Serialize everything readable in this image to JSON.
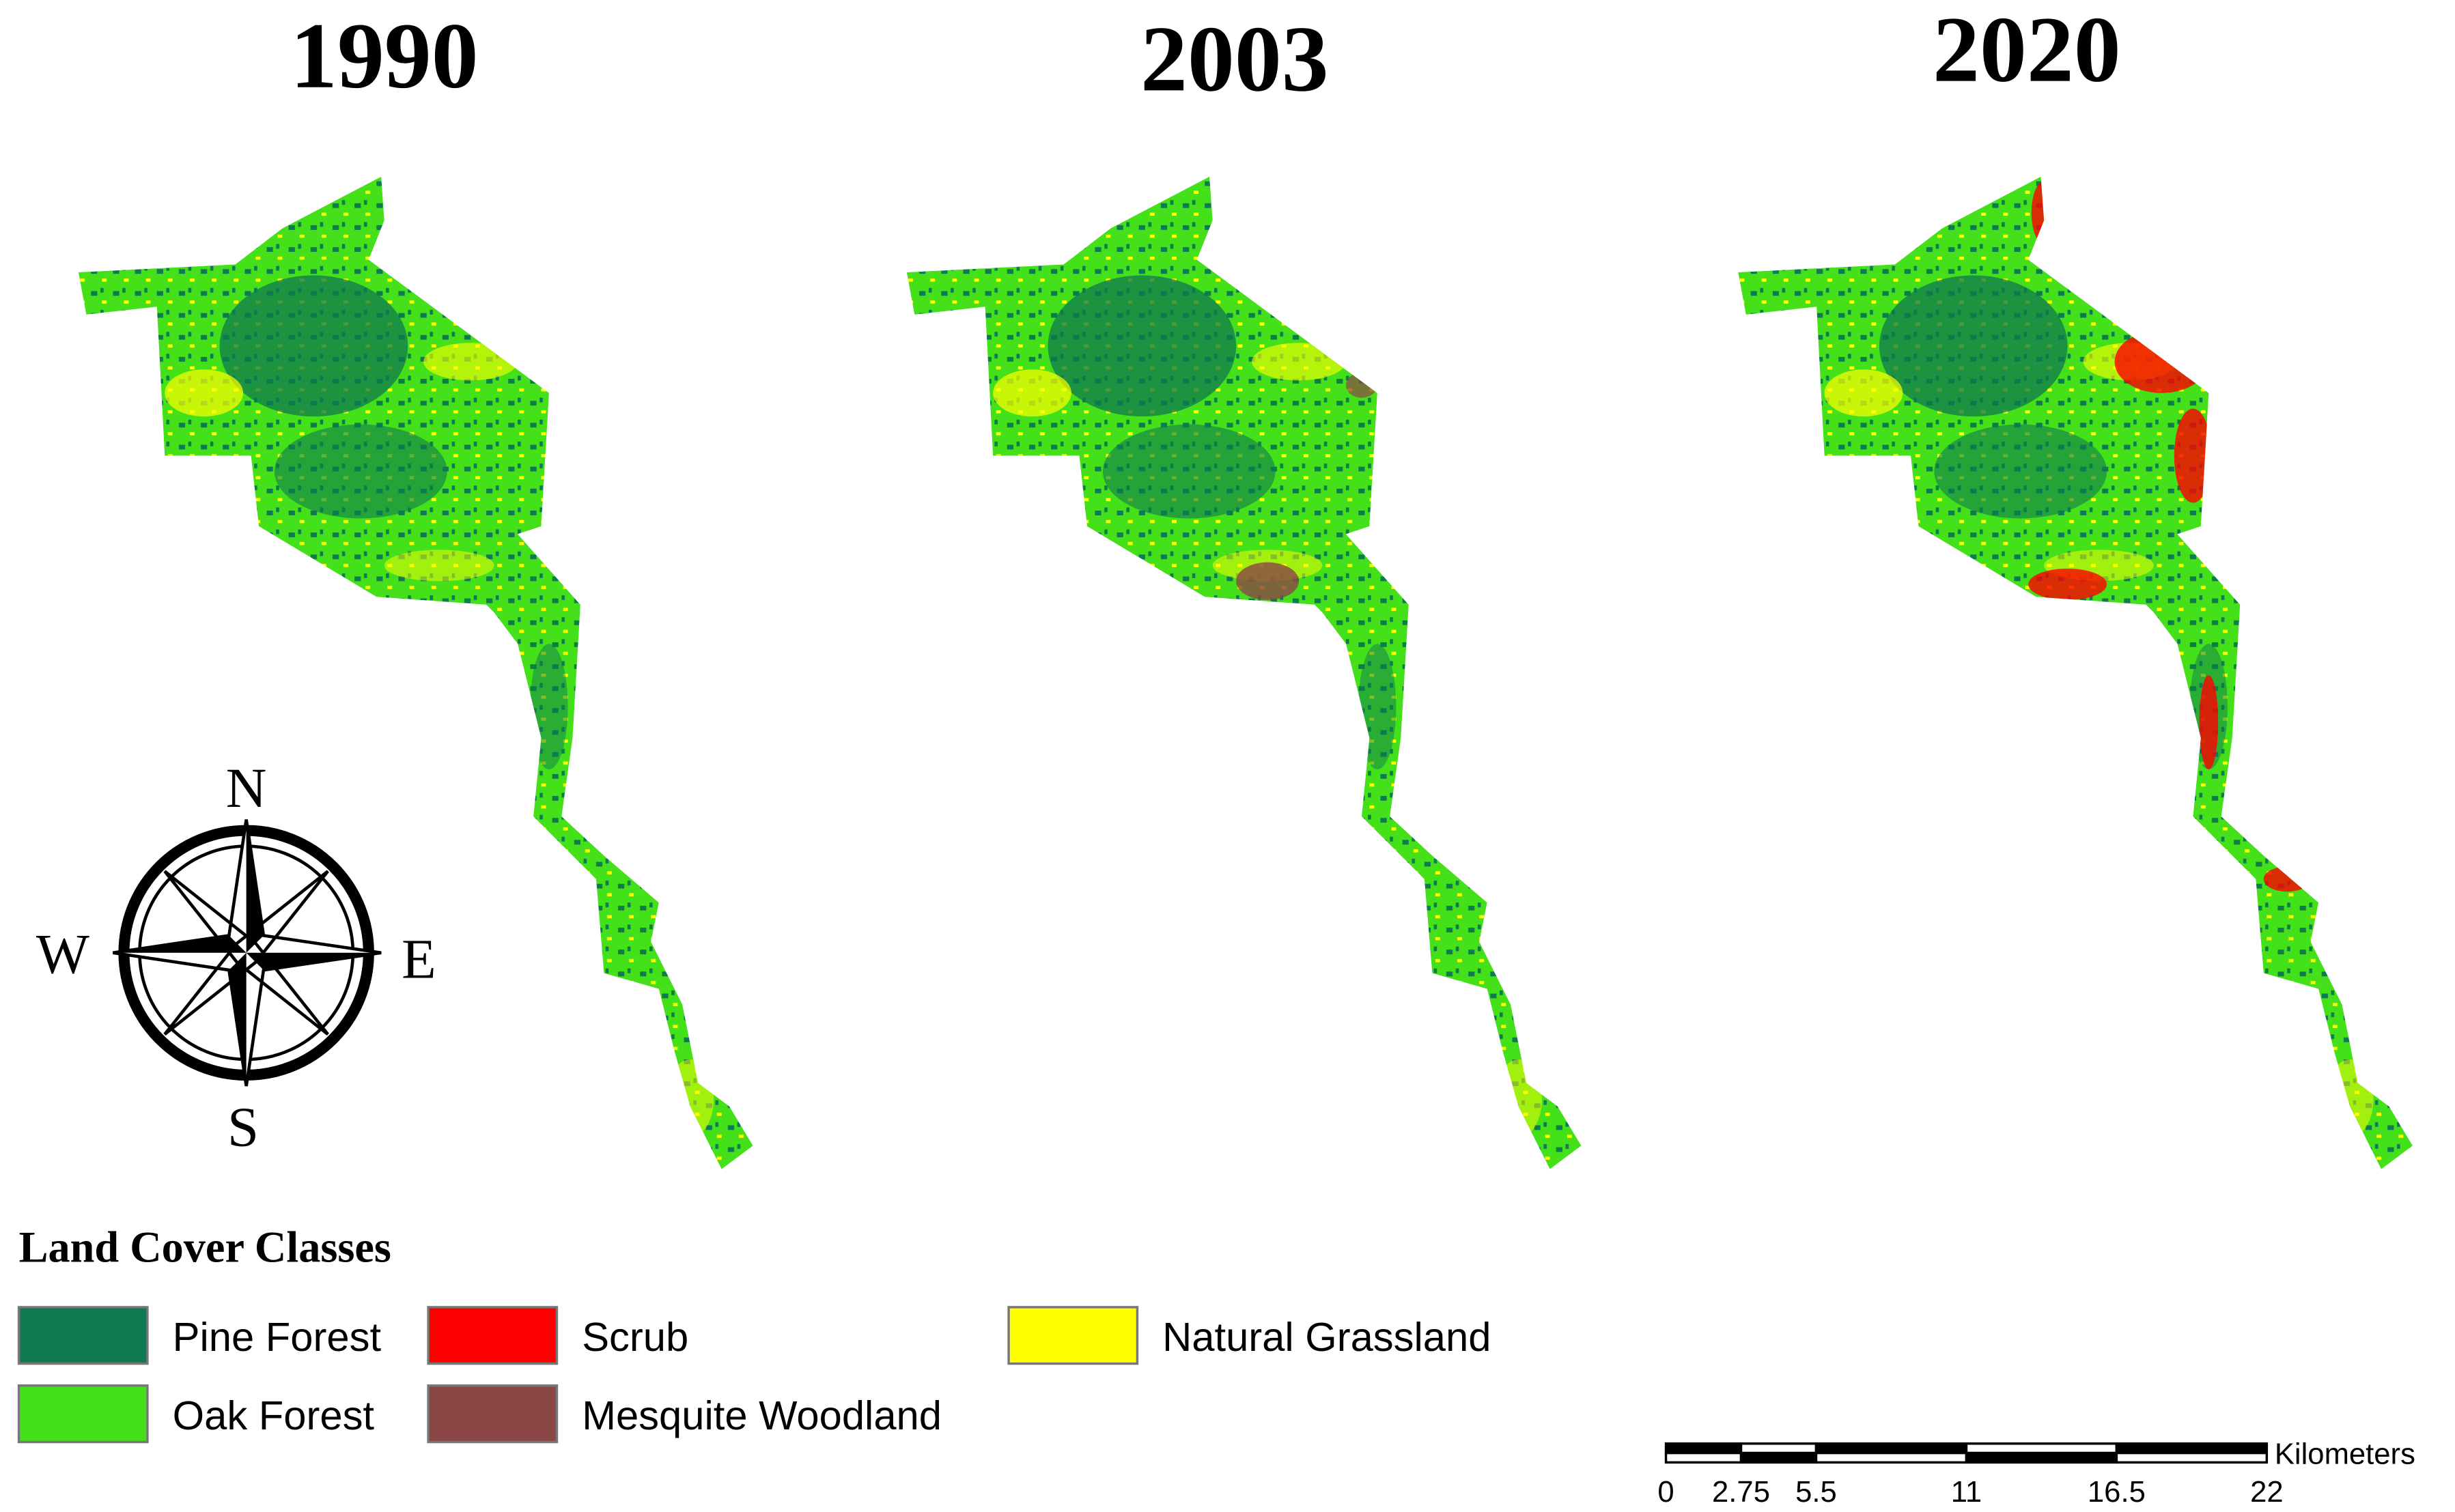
{
  "maps": [
    {
      "year": "1990"
    },
    {
      "year": "2003"
    },
    {
      "year": "2020"
    }
  ],
  "compass": {
    "north": "N",
    "south": "S",
    "east": "E",
    "west": "W"
  },
  "legend": {
    "title": "Land Cover Classes",
    "items": [
      {
        "label": "Pine Forest",
        "color": "#0f7a4f"
      },
      {
        "label": "Oak Forest",
        "color": "#44e01a"
      },
      {
        "label": "Scrub",
        "color": "#ff0000"
      },
      {
        "label": "Mesquite Woodland",
        "color": "#8b4646"
      },
      {
        "label": "Natural Grassland",
        "color": "#ffff00"
      }
    ]
  },
  "scale_bar": {
    "ticks": [
      0,
      2.75,
      5.5,
      11,
      16.5,
      22
    ],
    "unit": "Kilometers"
  }
}
